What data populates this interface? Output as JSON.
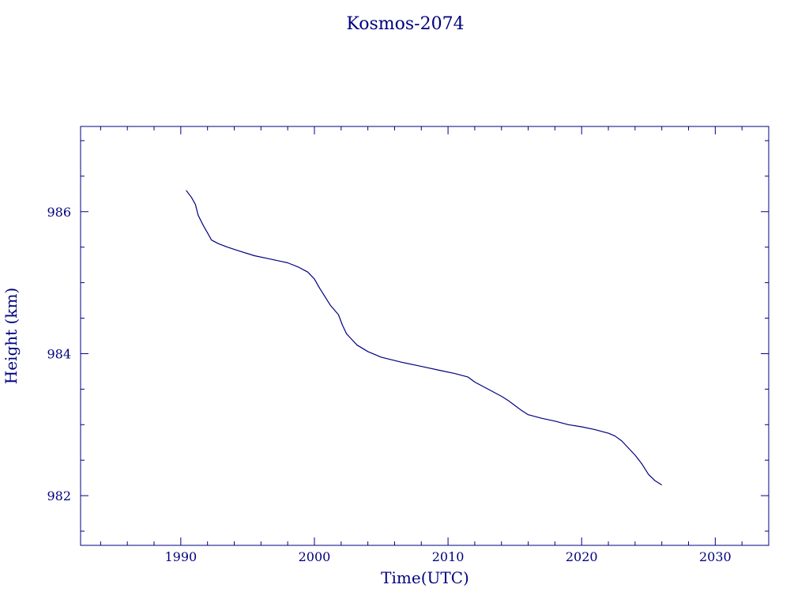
{
  "chart_data": {
    "type": "line",
    "title": "Kosmos-2074",
    "xlabel": "Time(UTC)",
    "ylabel": "Height (km)",
    "xlim": [
      1982.5,
      2034
    ],
    "ylim": [
      981.3,
      987.2
    ],
    "xticks": [
      1990,
      2000,
      2010,
      2020,
      2030
    ],
    "yticks": [
      982,
      984,
      986
    ],
    "x_minor_step": 2,
    "y_minor_step": 0.5,
    "grid": false,
    "color": "#000080",
    "series": [
      {
        "x": [
          1990.4,
          1990.8,
          1991.1,
          1991.3,
          1991.7,
          1992.0,
          1992.3,
          1992.8,
          1993.5,
          1994.3,
          1995.5,
          1996.5,
          1997.5,
          1998.0,
          1998.8,
          1999.5,
          2000.0,
          2000.4,
          2000.8,
          2001.2,
          2001.8,
          2002.1,
          2002.4,
          2002.8,
          2003.2,
          2004.0,
          2005.0,
          2006.5,
          2008.0,
          2009.5,
          2010.5,
          2011.5,
          2012.0,
          2013.0,
          2014.0,
          2014.5,
          2015.0,
          2015.5,
          2016.0,
          2017.0,
          2018.0,
          2019.0,
          2020.0,
          2021.0,
          2022.0,
          2022.5,
          2023.0,
          2023.5,
          2024.0,
          2024.5,
          2025.0,
          2025.5,
          2026.0
        ],
        "y": [
          986.3,
          986.2,
          986.1,
          985.95,
          985.8,
          985.7,
          985.6,
          985.55,
          985.5,
          985.45,
          985.38,
          985.34,
          985.3,
          985.28,
          985.22,
          985.15,
          985.05,
          984.92,
          984.8,
          984.68,
          984.55,
          984.4,
          984.28,
          984.2,
          984.12,
          984.03,
          983.95,
          983.88,
          983.82,
          983.76,
          983.72,
          983.67,
          983.6,
          983.5,
          983.4,
          983.34,
          983.27,
          983.2,
          983.14,
          983.09,
          983.05,
          983.0,
          982.97,
          982.93,
          982.88,
          982.84,
          982.77,
          982.67,
          982.57,
          982.45,
          982.3,
          982.21,
          982.15
        ]
      }
    ]
  }
}
